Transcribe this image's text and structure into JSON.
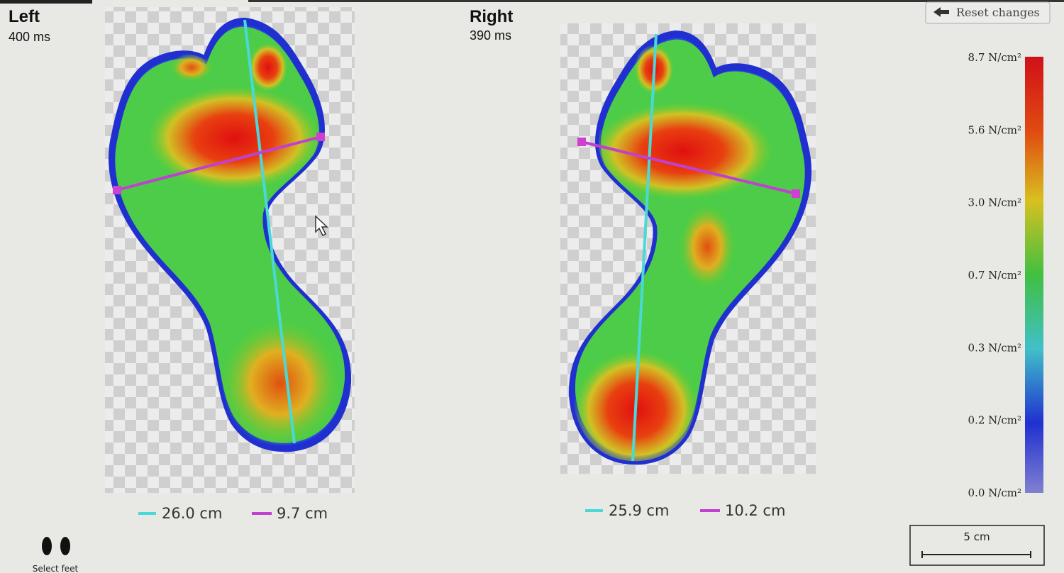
{
  "header": {
    "left": {
      "title": "Left",
      "duration": "400 ms"
    },
    "right": {
      "title": "Right",
      "duration": "390 ms"
    }
  },
  "reset_button": "Reset changes",
  "color_scale": {
    "labels": [
      "8.7 N/cm²",
      "5.6 N/cm²",
      "3.0 N/cm²",
      "0.7 N/cm²",
      "0.3 N/cm²",
      "0.2 N/cm²",
      "0.0 N/cm²"
    ]
  },
  "measurements": {
    "left": {
      "length": "26.0 cm",
      "width": "9.7 cm"
    },
    "right": {
      "length": "25.9 cm",
      "width": "10.2 cm"
    }
  },
  "scale_bar": "5 cm",
  "select_feet": "Select feet"
}
